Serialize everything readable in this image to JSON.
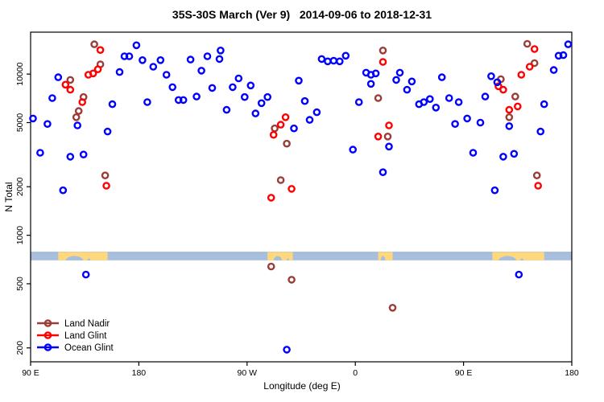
{
  "chart_data": {
    "type": "scatter",
    "title": "35S-30S March (Ver 9)   2014-09-06 to 2018-12-31",
    "xlabel": "Longitude (deg E)",
    "ylabel": "N Total",
    "grid": false,
    "x_axis": {
      "range": [
        90,
        540
      ],
      "ticks": [
        {
          "v": 90,
          "label": "90 E"
        },
        {
          "v": 180,
          "label": "180"
        },
        {
          "v": 270,
          "label": "90 W"
        },
        {
          "v": 360,
          "label": "0"
        },
        {
          "v": 450,
          "label": "90 E"
        },
        {
          "v": 540,
          "label": "180"
        }
      ]
    },
    "y_axis": {
      "scale": "log",
      "range": [
        164,
        18200
      ],
      "ticks": [
        {
          "v": 200,
          "label": "200"
        },
        {
          "v": 500,
          "label": "500"
        },
        {
          "v": 1000,
          "label": "1000"
        },
        {
          "v": 2000,
          "label": "2000"
        },
        {
          "v": 5000,
          "label": "5000"
        },
        {
          "v": 10000,
          "label": "10000"
        }
      ]
    },
    "map_band": {
      "n_range": [
        698,
        792
      ],
      "ocean_color": "#A7BFDD",
      "land_color": "#FFD87E",
      "land_segments": [
        {
          "lon_range": [
            113,
            154
          ],
          "notches": [
            [
              119,
              134
            ],
            [
              137,
              140
            ]
          ]
        },
        {
          "lon_range": [
            287,
            308
          ],
          "notches": [
            [
              292,
              299
            ],
            [
              303,
              305
            ]
          ]
        },
        {
          "lon_range": [
            379,
            391
          ],
          "notches": [
            [
              381,
              385
            ]
          ]
        },
        {
          "lon_range": [
            474,
            517
          ],
          "notches": [
            [
              479,
              494
            ],
            [
              497,
              500
            ]
          ]
        }
      ]
    },
    "legend": {
      "position": "bottom-left",
      "items": [
        "Land Nadir",
        "Land Glint",
        "Ocean Glint"
      ]
    },
    "series": [
      {
        "name": "Land Nadir",
        "color": "#9B3C37",
        "points": [
          [
            143,
            15300
          ],
          [
            148,
            11500
          ],
          [
            123,
            9200
          ],
          [
            134,
            7200
          ],
          [
            130,
            5900
          ],
          [
            128,
            5400
          ],
          [
            152,
            2350
          ],
          [
            293,
            4600
          ],
          [
            303,
            3700
          ],
          [
            298,
            2200
          ],
          [
            290,
            640
          ],
          [
            307,
            530
          ],
          [
            391,
            355
          ],
          [
            383,
            14000
          ],
          [
            379,
            7100
          ],
          [
            387,
            4100
          ],
          [
            503,
            15400
          ],
          [
            509,
            11700
          ],
          [
            481,
            9300
          ],
          [
            493,
            7250
          ],
          [
            488,
            5400
          ],
          [
            511,
            2350
          ]
        ]
      },
      {
        "name": "Land Glint",
        "color": "#FF0000",
        "points": [
          [
            148,
            14100
          ],
          [
            146,
            10700
          ],
          [
            142,
            10100
          ],
          [
            138,
            9900
          ],
          [
            119,
            8600
          ],
          [
            123,
            8000
          ],
          [
            133,
            6700
          ],
          [
            153,
            2030
          ],
          [
            302,
            5400
          ],
          [
            298,
            4850
          ],
          [
            292,
            4200
          ],
          [
            290,
            1710
          ],
          [
            307,
            1940
          ],
          [
            379,
            4100
          ],
          [
            388,
            4800
          ],
          [
            383,
            11900
          ],
          [
            505,
            11100
          ],
          [
            509,
            14300
          ],
          [
            498,
            9900
          ],
          [
            479,
            8400
          ],
          [
            483,
            8000
          ],
          [
            495,
            6300
          ],
          [
            488,
            6000
          ],
          [
            512,
            2030
          ]
        ]
      },
      {
        "name": "Ocean Glint",
        "color": "#0000FF",
        "points": [
          [
            92,
            5300
          ],
          [
            104,
            4900
          ],
          [
            98,
            3250
          ],
          [
            108,
            7100
          ],
          [
            113,
            9550
          ],
          [
            117,
            1900
          ],
          [
            123,
            3070
          ],
          [
            129,
            4800
          ],
          [
            134,
            3170
          ],
          [
            136,
            570
          ],
          [
            154,
            4400
          ],
          [
            158,
            6500
          ],
          [
            164,
            10300
          ],
          [
            168,
            12900
          ],
          [
            172,
            12900
          ],
          [
            178,
            15100
          ],
          [
            183,
            12200
          ],
          [
            187,
            6700
          ],
          [
            192,
            11100
          ],
          [
            198,
            12200
          ],
          [
            203,
            9900
          ],
          [
            208,
            8300
          ],
          [
            213,
            6900
          ],
          [
            217,
            6900
          ],
          [
            223,
            12300
          ],
          [
            228,
            7250
          ],
          [
            232,
            10500
          ],
          [
            237,
            12900
          ],
          [
            241,
            8200
          ],
          [
            247,
            12400
          ],
          [
            248,
            14000
          ],
          [
            253,
            6000
          ],
          [
            258,
            8300
          ],
          [
            263,
            9400
          ],
          [
            268,
            7200
          ],
          [
            273,
            8500
          ],
          [
            277,
            5700
          ],
          [
            282,
            6600
          ],
          [
            287,
            7200
          ],
          [
            303,
            195
          ],
          [
            309,
            4600
          ],
          [
            313,
            9100
          ],
          [
            318,
            6800
          ],
          [
            322,
            5200
          ],
          [
            328,
            5800
          ],
          [
            332,
            12400
          ],
          [
            337,
            12000
          ],
          [
            342,
            12100
          ],
          [
            347,
            12000
          ],
          [
            352,
            13000
          ],
          [
            358,
            3400
          ],
          [
            363,
            6700
          ],
          [
            369,
            10200
          ],
          [
            373,
            9900
          ],
          [
            373,
            8700
          ],
          [
            377,
            10100
          ],
          [
            383,
            2460
          ],
          [
            388,
            3550
          ],
          [
            394,
            9200
          ],
          [
            397,
            10200
          ],
          [
            403,
            8000
          ],
          [
            407,
            9000
          ],
          [
            413,
            6500
          ],
          [
            417,
            6700
          ],
          [
            422,
            7000
          ],
          [
            427,
            6200
          ],
          [
            432,
            9550
          ],
          [
            438,
            7100
          ],
          [
            443,
            4900
          ],
          [
            446,
            6700
          ],
          [
            453,
            5300
          ],
          [
            458,
            3250
          ],
          [
            464,
            5000
          ],
          [
            468,
            7250
          ],
          [
            473,
            9700
          ],
          [
            476,
            1900
          ],
          [
            478,
            8900
          ],
          [
            483,
            3070
          ],
          [
            488,
            4750
          ],
          [
            492,
            3200
          ],
          [
            496,
            570
          ],
          [
            514,
            4400
          ],
          [
            517,
            6500
          ],
          [
            525,
            10600
          ],
          [
            529,
            13000
          ],
          [
            533,
            13100
          ],
          [
            537,
            15300
          ]
        ]
      }
    ]
  }
}
